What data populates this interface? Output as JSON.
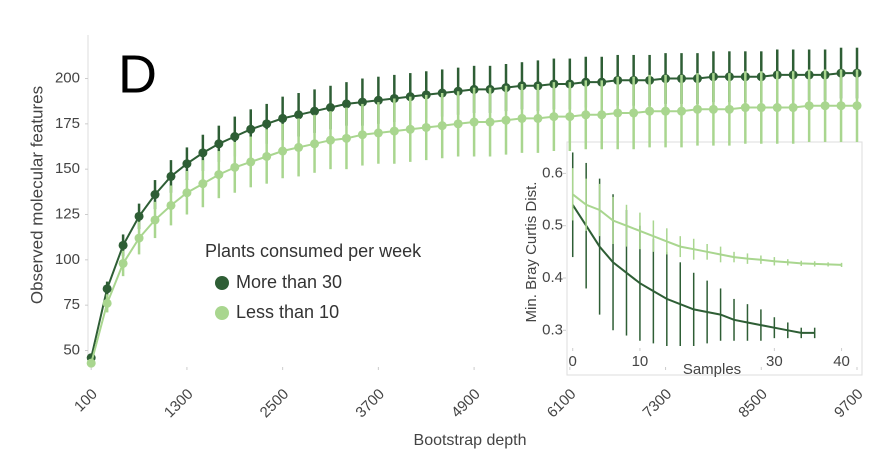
{
  "chart_data": [
    {
      "type": "line",
      "panel_label": "D",
      "x_label": "Bootstrap depth",
      "y_label": "Observed molecular features",
      "legend_title": "Plants consumed per week",
      "markers": true,
      "x": [
        100,
        300,
        500,
        700,
        900,
        1100,
        1300,
        1500,
        1700,
        1900,
        2100,
        2300,
        2500,
        2700,
        2900,
        3100,
        3300,
        3500,
        3700,
        3900,
        4100,
        4300,
        4500,
        4700,
        4900,
        5100,
        5300,
        5500,
        5700,
        5900,
        6100,
        6300,
        6500,
        6700,
        6900,
        7100,
        7300,
        7500,
        7700,
        7900,
        8100,
        8300,
        8500,
        8700,
        8900,
        9100,
        9300,
        9500,
        9700
      ],
      "xlim": [
        60,
        9750
      ],
      "xticks": [
        100,
        1300,
        2500,
        3700,
        4900,
        6100,
        7300,
        8500,
        9700
      ],
      "ylim": [
        42,
        224
      ],
      "yticks": [
        50,
        75,
        100,
        125,
        150,
        175,
        200
      ],
      "series": [
        {
          "name": "More than 30",
          "color": "#2e5e35",
          "values": [
            46,
            84,
            108,
            124,
            136,
            146,
            153,
            159,
            164,
            168,
            172,
            175,
            178,
            180,
            182,
            184,
            186,
            187,
            188,
            189,
            190,
            191,
            192,
            193,
            194,
            194,
            195,
            196,
            196,
            197,
            197,
            198,
            198,
            199,
            199,
            199,
            200,
            200,
            200,
            201,
            201,
            201,
            201,
            202,
            202,
            202,
            202,
            203,
            203
          ],
          "errors": [
            2,
            4,
            6,
            7,
            8,
            9,
            9,
            10,
            10,
            11,
            11,
            11,
            12,
            12,
            12,
            12,
            12,
            13,
            13,
            13,
            13,
            13,
            13,
            13,
            13,
            13,
            13,
            13,
            14,
            14,
            14,
            14,
            14,
            14,
            14,
            14,
            14,
            14,
            14,
            14,
            14,
            14,
            14,
            14,
            14,
            14,
            14,
            14,
            14
          ]
        },
        {
          "name": "Less than 10",
          "color": "#a9d68f",
          "values": [
            43,
            76,
            98,
            112,
            122,
            130,
            137,
            142,
            147,
            151,
            154,
            157,
            160,
            162,
            164,
            166,
            167,
            169,
            170,
            171,
            172,
            173,
            174,
            175,
            176,
            176,
            177,
            178,
            178,
            179,
            179,
            180,
            180,
            181,
            181,
            182,
            182,
            182,
            183,
            183,
            183,
            184,
            184,
            184,
            184,
            185,
            185,
            185,
            185
          ],
          "errors": [
            2,
            5,
            7,
            9,
            10,
            11,
            12,
            13,
            13,
            14,
            14,
            15,
            15,
            16,
            16,
            16,
            17,
            17,
            17,
            18,
            18,
            18,
            18,
            18,
            19,
            19,
            19,
            19,
            19,
            19,
            19,
            19,
            19,
            20,
            20,
            20,
            20,
            20,
            20,
            20,
            20,
            20,
            20,
            20,
            20,
            20,
            20,
            20,
            20
          ]
        }
      ]
    },
    {
      "type": "line",
      "x_label": "Samples",
      "y_label": "Min. Bray Curtis Dist.",
      "markers": false,
      "xlim": [
        -1,
        42
      ],
      "xticks": [
        0,
        10,
        30,
        40
      ],
      "ylim": [
        0.27,
        0.66
      ],
      "yticks": [
        0.3,
        0.4,
        0.5,
        0.6
      ],
      "series": [
        {
          "color": "#2e5e35",
          "x": [
            0,
            2,
            4,
            6,
            8,
            10,
            12,
            14,
            16,
            18,
            20,
            22,
            24,
            26,
            28,
            30,
            32,
            34,
            36
          ],
          "values": [
            0.54,
            0.5,
            0.46,
            0.43,
            0.41,
            0.39,
            0.375,
            0.36,
            0.35,
            0.34,
            0.335,
            0.33,
            0.32,
            0.315,
            0.31,
            0.305,
            0.3,
            0.295,
            0.295
          ],
          "errors": [
            0.1,
            0.12,
            0.13,
            0.13,
            0.12,
            0.11,
            0.1,
            0.09,
            0.08,
            0.07,
            0.06,
            0.05,
            0.04,
            0.035,
            0.03,
            0.02,
            0.015,
            0.01,
            0.01
          ]
        },
        {
          "color": "#a9d68f",
          "x": [
            0,
            2,
            4,
            6,
            8,
            10,
            12,
            14,
            16,
            18,
            20,
            22,
            24,
            26,
            28,
            30,
            32,
            34,
            36,
            38,
            40
          ],
          "values": [
            0.56,
            0.54,
            0.53,
            0.51,
            0.5,
            0.49,
            0.48,
            0.47,
            0.46,
            0.455,
            0.45,
            0.445,
            0.44,
            0.437,
            0.435,
            0.432,
            0.43,
            0.428,
            0.427,
            0.426,
            0.425
          ],
          "errors": [
            0.05,
            0.05,
            0.05,
            0.045,
            0.04,
            0.035,
            0.03,
            0.025,
            0.02,
            0.02,
            0.015,
            0.015,
            0.01,
            0.01,
            0.008,
            0.008,
            0.006,
            0.005,
            0.005,
            0.004,
            0.004
          ]
        }
      ]
    }
  ]
}
